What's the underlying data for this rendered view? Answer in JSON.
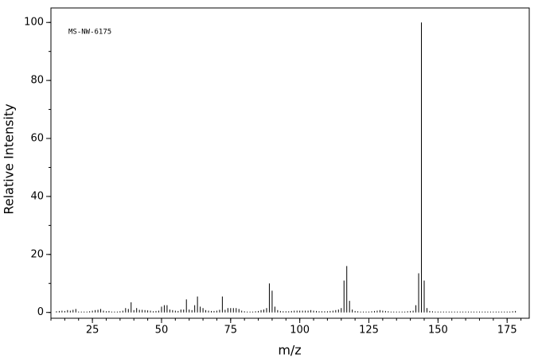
{
  "chart_data": {
    "type": "stem",
    "annotation": "MS-NW-6175",
    "x_label": "m/z",
    "y_label": "Relative Intensity",
    "color": "#000000",
    "x": [
      12,
      13,
      14,
      15,
      16,
      17,
      18,
      19,
      20,
      21,
      22,
      23,
      24,
      25,
      26,
      27,
      28,
      29,
      30,
      31,
      32,
      33,
      34,
      35,
      36,
      37,
      38,
      39,
      40,
      41,
      42,
      43,
      44,
      45,
      46,
      47,
      48,
      49,
      50,
      51,
      52,
      53,
      54,
      55,
      56,
      57,
      58,
      59,
      60,
      61,
      62,
      63,
      64,
      65,
      66,
      67,
      68,
      69,
      70,
      71,
      72,
      73,
      74,
      75,
      76,
      77,
      78,
      79,
      80,
      81,
      82,
      83,
      84,
      85,
      86,
      87,
      88,
      89,
      90,
      91,
      92,
      93,
      94,
      95,
      96,
      97,
      98,
      99,
      100,
      101,
      102,
      103,
      104,
      105,
      106,
      107,
      108,
      109,
      110,
      111,
      112,
      113,
      114,
      115,
      116,
      117,
      118,
      119,
      120,
      121,
      122,
      123,
      124,
      125,
      126,
      127,
      128,
      129,
      130,
      131,
      132,
      133,
      134,
      135,
      136,
      137,
      138,
      139,
      140,
      141,
      142,
      143,
      144,
      145,
      146,
      147,
      148,
      149,
      150,
      151,
      152,
      153,
      154,
      155,
      156,
      157,
      158,
      159,
      160,
      161,
      162,
      163,
      164,
      165,
      166,
      167,
      168,
      169,
      170,
      171,
      172,
      173,
      174,
      175,
      176,
      177,
      178
    ],
    "values": [
      0.4,
      0.5,
      0.6,
      0.5,
      0.8,
      0.6,
      0.9,
      1.2,
      0.3,
      0.3,
      0.3,
      0.3,
      0.4,
      0.6,
      0.8,
      0.9,
      1.2,
      0.6,
      0.4,
      0.5,
      0.3,
      0.3,
      0.3,
      0.4,
      0.6,
      1.5,
      1.2,
      3.5,
      0.8,
      1.5,
      0.9,
      0.9,
      0.8,
      0.7,
      0.6,
      0.4,
      0.5,
      0.6,
      2,
      2.5,
      2.5,
      1,
      0.8,
      0.6,
      0.5,
      1,
      1,
      4.5,
      1,
      0.8,
      2.5,
      5.5,
      2,
      1.5,
      0.8,
      0.6,
      0.5,
      0.5,
      0.6,
      0.9,
      5.5,
      0.9,
      1.5,
      1.5,
      1.5,
      1.5,
      1.2,
      0.6,
      0.4,
      0.3,
      0.3,
      0.3,
      0.4,
      0.5,
      0.8,
      1,
      1.5,
      10,
      7.5,
      2,
      0.8,
      0.5,
      0.4,
      0.4,
      0.4,
      0.5,
      0.6,
      0.6,
      0.6,
      0.6,
      0.6,
      0.6,
      0.8,
      0.6,
      0.5,
      0.4,
      0.4,
      0.4,
      0.4,
      0.5,
      0.6,
      0.8,
      1,
      1.5,
      11,
      16,
      4,
      1,
      0.5,
      0.4,
      0.3,
      0.3,
      0.3,
      0.3,
      0.4,
      0.5,
      0.6,
      0.8,
      0.6,
      0.5,
      0.4,
      0.3,
      0.3,
      0.3,
      0.3,
      0.3,
      0.3,
      0.4,
      0.5,
      0.6,
      2.5,
      13.5,
      100,
      11,
      1.5,
      0.5,
      0.4,
      0.3,
      0.3,
      0.3,
      0.3,
      0.3,
      0.3,
      0.3,
      0.3,
      0.3,
      0.3,
      0.3,
      0.3,
      0.3,
      0.3,
      0.3,
      0.3,
      0.3,
      0.3,
      0.3,
      0.3,
      0.3,
      0.3,
      0.3,
      0.3,
      0.3,
      0.3,
      0.3,
      0.3,
      0.4,
      0.5
    ],
    "xlim": [
      10,
      183
    ],
    "ylim": [
      -2,
      105
    ],
    "xticks": [
      25,
      50,
      75,
      100,
      125,
      150,
      175
    ],
    "yticks": [
      0,
      20,
      40,
      60,
      80,
      100
    ]
  }
}
